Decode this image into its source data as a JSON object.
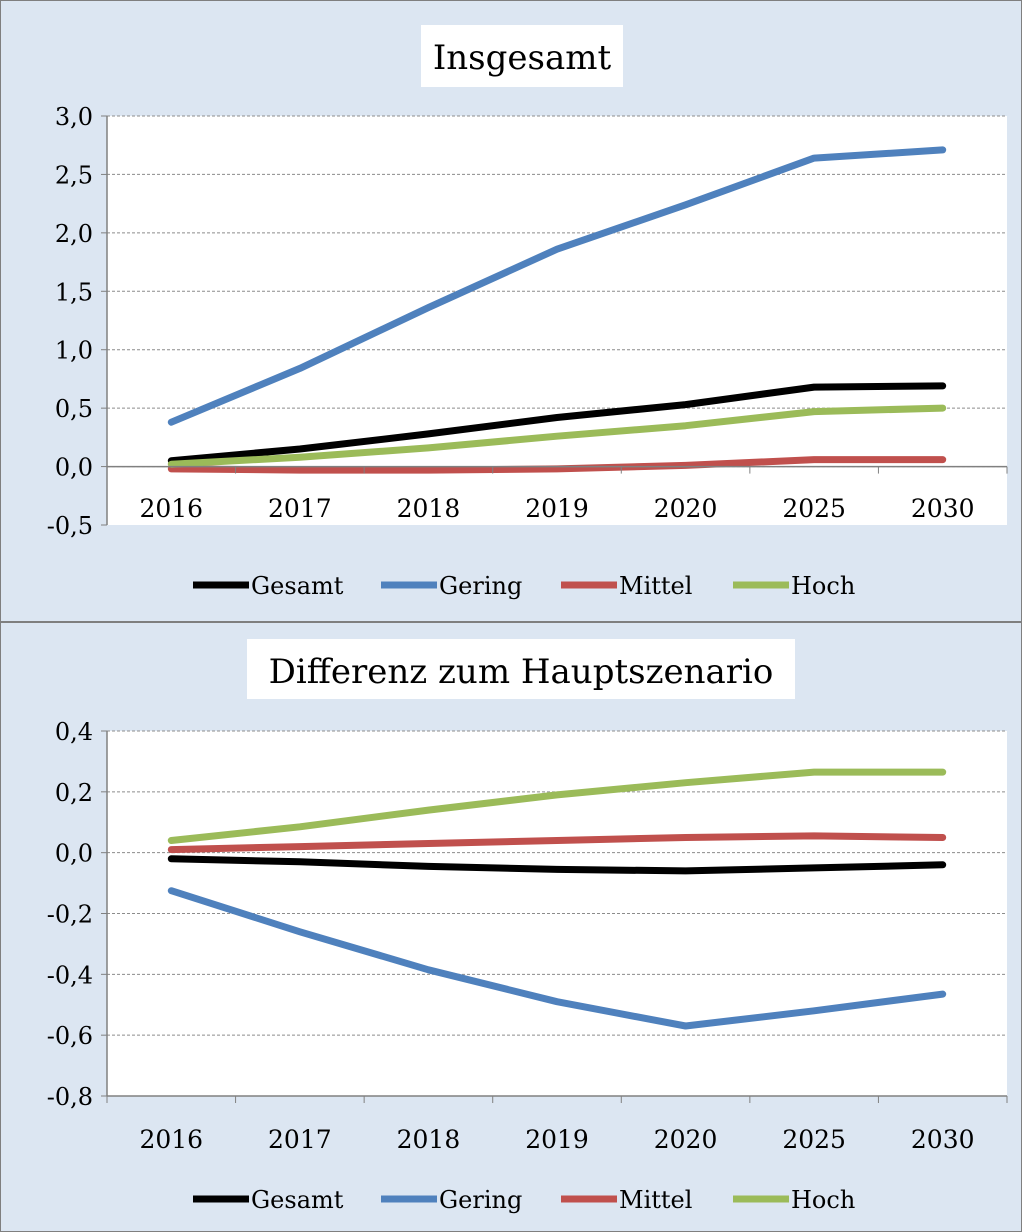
{
  "chart_data": [
    {
      "type": "line",
      "title": "Insgesamt",
      "xlabel": "",
      "ylabel": "",
      "categories": [
        "2016",
        "2017",
        "2018",
        "2019",
        "2020",
        "2025",
        "2030"
      ],
      "ylim": [
        -0.5,
        3.0
      ],
      "yticks": [
        "-0,5",
        "0,0",
        "0,5",
        "1,0",
        "1,5",
        "2,0",
        "2,5",
        "3,0"
      ],
      "ytick_values": [
        -0.5,
        0.0,
        0.5,
        1.0,
        1.5,
        2.0,
        2.5,
        3.0
      ],
      "grid": true,
      "legend_position": "bottom",
      "series": [
        {
          "name": "Gesamt",
          "color": "#000000",
          "values": [
            0.05,
            0.15,
            0.28,
            0.42,
            0.53,
            0.68,
            0.69
          ]
        },
        {
          "name": "Gering",
          "color": "#4f81bd",
          "values": [
            0.38,
            0.84,
            1.36,
            1.86,
            2.24,
            2.64,
            2.71
          ]
        },
        {
          "name": "Mittel",
          "color": "#c0504d",
          "values": [
            -0.02,
            -0.03,
            -0.03,
            -0.02,
            0.01,
            0.06,
            0.06
          ]
        },
        {
          "name": "Hoch",
          "color": "#9bbb59",
          "values": [
            0.02,
            0.08,
            0.16,
            0.26,
            0.35,
            0.47,
            0.5
          ]
        }
      ]
    },
    {
      "type": "line",
      "title": "Differenz zum Hauptszenario",
      "xlabel": "",
      "ylabel": "",
      "categories": [
        "2016",
        "2017",
        "2018",
        "2019",
        "2020",
        "2025",
        "2030"
      ],
      "ylim": [
        -0.8,
        0.4
      ],
      "yticks": [
        "-0,8",
        "-0,6",
        "-0,4",
        "-0,2",
        "0,0",
        "0,2",
        "0,4"
      ],
      "ytick_values": [
        -0.8,
        -0.6,
        -0.4,
        -0.2,
        0.0,
        0.2,
        0.4
      ],
      "grid": true,
      "legend_position": "bottom",
      "series": [
        {
          "name": "Gesamt",
          "color": "#000000",
          "values": [
            -0.02,
            -0.03,
            -0.045,
            -0.055,
            -0.06,
            -0.05,
            -0.04
          ]
        },
        {
          "name": "Gering",
          "color": "#4f81bd",
          "values": [
            -0.125,
            -0.26,
            -0.385,
            -0.49,
            -0.57,
            -0.52,
            -0.465
          ]
        },
        {
          "name": "Mittel",
          "color": "#c0504d",
          "values": [
            0.01,
            0.02,
            0.03,
            0.04,
            0.05,
            0.055,
            0.05
          ]
        },
        {
          "name": "Hoch",
          "color": "#9bbb59",
          "values": [
            0.04,
            0.085,
            0.14,
            0.19,
            0.23,
            0.265,
            0.265
          ]
        }
      ]
    }
  ]
}
